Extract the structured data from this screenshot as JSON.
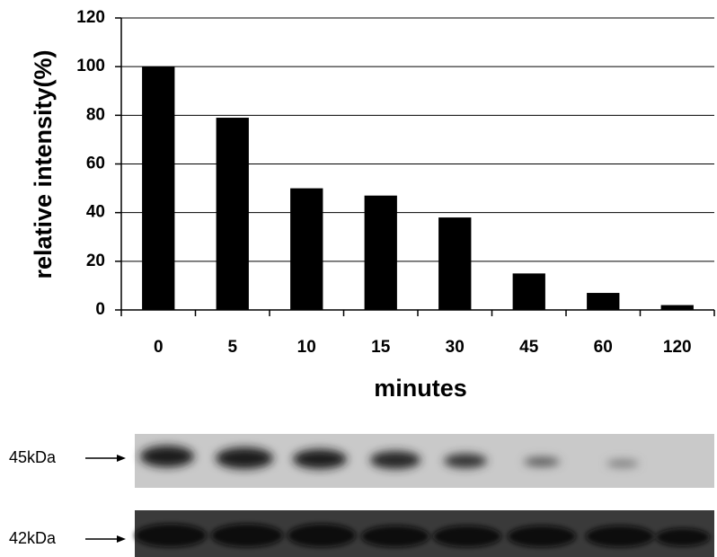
{
  "chart_data": {
    "type": "bar",
    "x_label": "minutes",
    "y_label": "relative intensity(%)",
    "categories": [
      "0",
      "5",
      "10",
      "15",
      "30",
      "45",
      "60",
      "120"
    ],
    "values": [
      100,
      79,
      50,
      47,
      38,
      15,
      7,
      2
    ],
    "color": "#000000",
    "ylim": [
      0,
      120
    ],
    "yticks": [
      0,
      20,
      40,
      60,
      80,
      100,
      120
    ],
    "grid": true
  },
  "blots": [
    {
      "label": "45kDa"
    },
    {
      "label": "42kDa"
    }
  ]
}
